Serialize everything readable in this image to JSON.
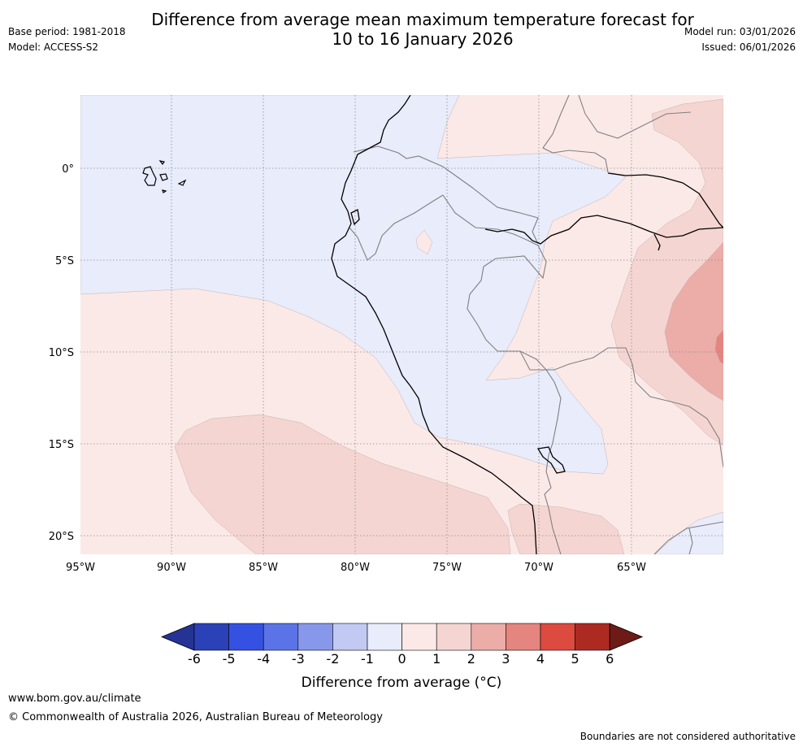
{
  "header": {
    "title_line1": "Difference from average mean maximum temperature forecast for",
    "title_line2": "10 to 16 January 2026",
    "base_period": "Base period: 1981-2018",
    "model": "Model: ACCESS-S2",
    "model_run": "Model run: 03/01/2026",
    "issued": "Issued: 06/01/2026"
  },
  "map": {
    "lat_labels": [
      "0°",
      "5°S",
      "10°S",
      "15°S",
      "20°S"
    ],
    "lon_labels": [
      "95°W",
      "90°W",
      "85°W",
      "80°W",
      "75°W",
      "70°W",
      "65°W"
    ],
    "colors": {
      "neg1": "#e8ecfb",
      "pos1": "#fbe9e7",
      "pos2": "#f5d5d2",
      "pos3": "#ecaca8",
      "pos4": "#e5857f",
      "coast": "#000000",
      "border": "#808080",
      "grid": "#8a8a8a"
    }
  },
  "colorbar": {
    "ticks": [
      "-6",
      "-5",
      "-4",
      "-3",
      "-2",
      "-1",
      "0",
      "1",
      "2",
      "3",
      "4",
      "5",
      "6"
    ],
    "colors": [
      "#253494",
      "#2a41b8",
      "#3551e2",
      "#5a74e8",
      "#8798ea",
      "#c2c9f3",
      "#e8ecfb",
      "#fbe9e7",
      "#f5d5d2",
      "#ecaca8",
      "#e5857f",
      "#dc4a40",
      "#ad2a22",
      "#6e1a16"
    ],
    "label": "Difference from average (°C)"
  },
  "footer": {
    "url": "www.bom.gov.au/climate",
    "copyright": "© Commonwealth of Australia 2026, Australian Bureau of Meteorology",
    "disclaimer": "Boundaries are not considered authoritative"
  }
}
